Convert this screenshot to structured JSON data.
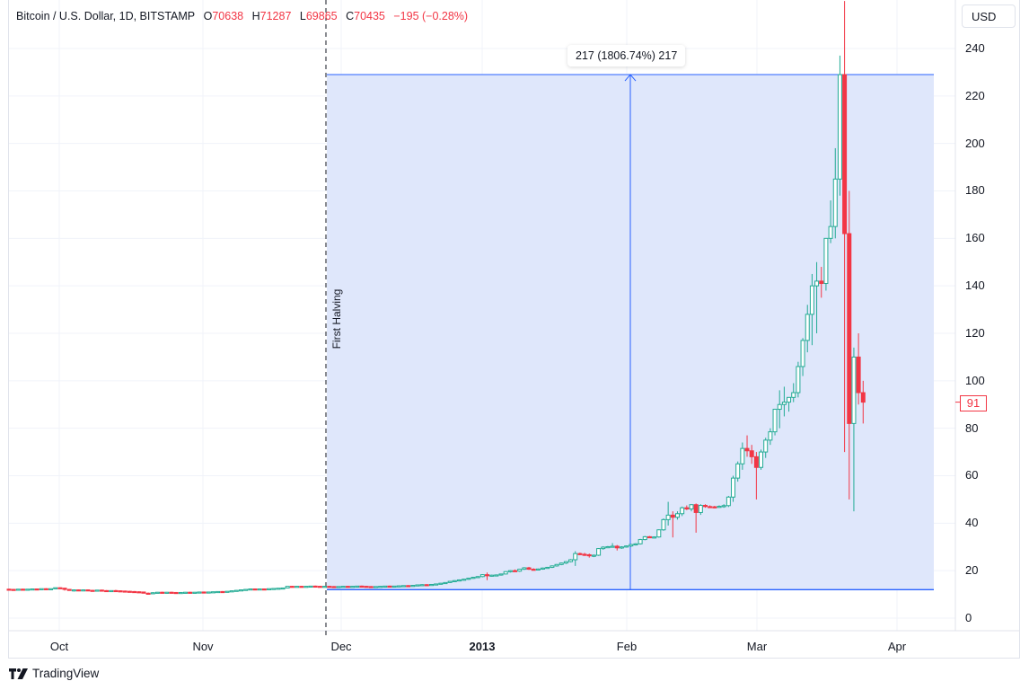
{
  "legend": {
    "symbol": "Bitcoin / U.S. Dollar, 1D, BITSTAMP",
    "open_label": "O",
    "open": "70638",
    "high_label": "H",
    "high": "71287",
    "low_label": "L",
    "low": "69865",
    "close_label": "C",
    "close": "70435",
    "change": "−195 (−0.28%)"
  },
  "currency_button": "USD",
  "last_price_tag": "91",
  "measure_label": "217 (1806.74%) 217",
  "event_marker": {
    "label": "First Halving"
  },
  "brand": {
    "name": "TradingView",
    "icon": "tradingview-logo-icon"
  },
  "colors": {
    "up": "#22ab94",
    "down": "#f23645",
    "measure_fill": "#dde6fb",
    "measure_line": "#2962ff",
    "grid": "#f0f3fa",
    "text": "#131722"
  },
  "y_axis": {
    "ticks": [
      "240",
      "220",
      "200",
      "180",
      "160",
      "140",
      "120",
      "100",
      "80",
      "60",
      "40",
      "20",
      "0"
    ]
  },
  "x_axis": {
    "ticks": [
      {
        "label": "Oct",
        "bold": false
      },
      {
        "label": "Nov",
        "bold": false
      },
      {
        "label": "Dec",
        "bold": false
      },
      {
        "label": "2013",
        "bold": true
      },
      {
        "label": "Feb",
        "bold": false
      },
      {
        "label": "Mar",
        "bold": false
      },
      {
        "label": "Apr",
        "bold": false
      }
    ]
  },
  "chart_data": {
    "type": "candlestick",
    "title": "Bitcoin / U.S. Dollar, 1D, BITSTAMP",
    "xlabel": "",
    "ylabel": "USD",
    "ylim": [
      -8,
      250
    ],
    "x_range": [
      "2012-09-20",
      "2013-04-17"
    ],
    "grid": true,
    "legend_position": "top-left",
    "x_ticks": [
      "Oct",
      "Nov",
      "Dec",
      "2013",
      "Feb",
      "Mar",
      "Apr"
    ],
    "y_ticks": [
      0,
      20,
      40,
      60,
      80,
      100,
      120,
      140,
      160,
      180,
      200,
      220,
      240
    ],
    "annotations": [
      {
        "type": "vertical-dashed-line",
        "date": "2012-11-28",
        "label": "First Halving"
      },
      {
        "type": "price-range-measure",
        "from_date": "2012-11-28",
        "to_date": "2013-04-10",
        "from_price": 12,
        "to_price": 229,
        "label": "217 (1806.74%) 217"
      },
      {
        "type": "last-price",
        "value": 91
      }
    ],
    "approx_closes": [
      {
        "date": "2012-09-20",
        "close": 12.2
      },
      {
        "date": "2012-10-01",
        "close": 12.4
      },
      {
        "date": "2012-10-15",
        "close": 11.8
      },
      {
        "date": "2012-11-01",
        "close": 10.8
      },
      {
        "date": "2012-11-15",
        "close": 11.0
      },
      {
        "date": "2012-11-28",
        "close": 12.3
      },
      {
        "date": "2012-12-15",
        "close": 13.4
      },
      {
        "date": "2013-01-01",
        "close": 13.4
      },
      {
        "date": "2013-01-15",
        "close": 14.5
      },
      {
        "date": "2013-02-01",
        "close": 20.0
      },
      {
        "date": "2013-02-15",
        "close": 27.0
      },
      {
        "date": "2013-03-01",
        "close": 34.0
      },
      {
        "date": "2013-03-10",
        "close": 46.0
      },
      {
        "date": "2013-03-20",
        "close": 64.0
      },
      {
        "date": "2013-04-01",
        "close": 104.0
      },
      {
        "date": "2013-04-06",
        "close": 142.0
      },
      {
        "date": "2013-04-09",
        "close": 230.0
      },
      {
        "date": "2013-04-10",
        "close": 162.0
      },
      {
        "date": "2013-04-11",
        "close": 83.0
      },
      {
        "date": "2013-04-12",
        "close": 109.0
      },
      {
        "date": "2013-04-13",
        "close": 93.0
      },
      {
        "date": "2013-04-14",
        "close": 91.0
      }
    ],
    "candles": [
      [
        12.2,
        12.4,
        12.0,
        12.1
      ],
      [
        12.1,
        12.3,
        11.9,
        12.0
      ],
      [
        12.0,
        12.3,
        11.9,
        12.2
      ],
      [
        12.2,
        12.4,
        12.0,
        12.1
      ],
      [
        12.1,
        12.3,
        11.9,
        12.2
      ],
      [
        12.2,
        12.5,
        12.0,
        12.3
      ],
      [
        12.3,
        12.5,
        12.1,
        12.2
      ],
      [
        12.2,
        12.4,
        12.0,
        12.4
      ],
      [
        12.4,
        12.6,
        12.2,
        12.3
      ],
      [
        12.3,
        12.5,
        12.1,
        12.4
      ],
      [
        12.4,
        12.9,
        12.2,
        12.8
      ],
      [
        12.8,
        13.0,
        12.5,
        12.6
      ],
      [
        12.6,
        12.8,
        11.6,
        12.1
      ],
      [
        12.1,
        12.3,
        11.7,
        11.8
      ],
      [
        11.8,
        12.1,
        11.2,
        11.9
      ],
      [
        11.9,
        12.1,
        11.6,
        11.7
      ],
      [
        11.7,
        12.0,
        11.5,
        11.9
      ],
      [
        11.9,
        12.0,
        11.6,
        11.7
      ],
      [
        11.7,
        11.9,
        11.4,
        11.6
      ],
      [
        11.6,
        11.9,
        11.4,
        11.8
      ],
      [
        11.8,
        12.0,
        11.5,
        11.6
      ],
      [
        11.6,
        11.8,
        11.2,
        11.4
      ],
      [
        11.4,
        11.7,
        11.2,
        11.6
      ],
      [
        11.6,
        11.9,
        11.3,
        11.5
      ],
      [
        11.5,
        11.7,
        11.2,
        11.4
      ],
      [
        11.4,
        11.6,
        11.1,
        11.3
      ],
      [
        11.3,
        11.5,
        11.1,
        11.2
      ],
      [
        11.2,
        11.4,
        10.9,
        11.1
      ],
      [
        11.1,
        11.3,
        10.8,
        11.0
      ],
      [
        11.0,
        11.1,
        10.4,
        10.5
      ],
      [
        10.5,
        10.8,
        10.0,
        10.3
      ],
      [
        10.3,
        10.9,
        10.2,
        10.7
      ],
      [
        10.7,
        11.0,
        10.5,
        10.9
      ],
      [
        10.9,
        11.1,
        10.7,
        10.8
      ],
      [
        10.8,
        11.0,
        10.6,
        10.9
      ],
      [
        10.9,
        11.1,
        10.7,
        10.8
      ],
      [
        10.8,
        11.0,
        10.6,
        10.7
      ],
      [
        10.7,
        10.9,
        10.5,
        10.8
      ],
      [
        10.8,
        11.0,
        10.6,
        10.9
      ],
      [
        10.9,
        11.1,
        10.7,
        10.8
      ],
      [
        10.8,
        11.0,
        10.6,
        10.9
      ],
      [
        10.9,
        11.1,
        10.7,
        11.0
      ],
      [
        11.0,
        11.2,
        10.8,
        10.9
      ],
      [
        10.9,
        11.1,
        10.7,
        11.0
      ],
      [
        11.0,
        11.2,
        10.8,
        11.1
      ],
      [
        11.1,
        11.3,
        10.9,
        11.2
      ],
      [
        11.2,
        11.4,
        11.0,
        11.1
      ],
      [
        11.1,
        11.3,
        10.9,
        11.3
      ],
      [
        11.3,
        11.6,
        11.1,
        11.5
      ],
      [
        11.5,
        11.8,
        11.3,
        11.7
      ],
      [
        11.7,
        12.0,
        11.5,
        11.9
      ],
      [
        11.9,
        12.2,
        11.7,
        12.1
      ],
      [
        12.1,
        12.4,
        11.9,
        12.3
      ],
      [
        12.3,
        12.5,
        12.0,
        12.2
      ],
      [
        12.2,
        12.4,
        12.0,
        12.3
      ],
      [
        12.3,
        12.5,
        12.0,
        12.2
      ],
      [
        12.2,
        12.4,
        12.0,
        12.4
      ],
      [
        12.4,
        12.6,
        12.2,
        12.5
      ],
      [
        12.5,
        12.7,
        12.3,
        12.6
      ],
      [
        12.6,
        12.8,
        12.4,
        12.7
      ],
      [
        12.7,
        13.5,
        12.6,
        13.4
      ],
      [
        13.4,
        13.6,
        13.1,
        13.3
      ],
      [
        13.3,
        13.5,
        13.1,
        13.4
      ],
      [
        13.4,
        13.6,
        13.2,
        13.3
      ],
      [
        13.3,
        13.5,
        13.1,
        13.4
      ],
      [
        13.4,
        13.6,
        13.2,
        13.5
      ],
      [
        13.5,
        13.7,
        13.3,
        13.4
      ],
      [
        13.4,
        13.6,
        13.2,
        13.3
      ],
      [
        13.3,
        13.5,
        13.1,
        13.4
      ],
      [
        13.4,
        13.6,
        13.2,
        13.3
      ],
      [
        13.3,
        13.5,
        13.1,
        13.2
      ],
      [
        13.2,
        13.4,
        13.0,
        13.3
      ],
      [
        13.3,
        13.5,
        13.1,
        13.4
      ],
      [
        13.4,
        13.6,
        13.2,
        13.3
      ],
      [
        13.3,
        13.5,
        13.1,
        13.4
      ],
      [
        13.4,
        13.6,
        13.2,
        13.5
      ],
      [
        13.5,
        13.7,
        13.3,
        13.4
      ],
      [
        13.4,
        13.6,
        13.2,
        13.3
      ],
      [
        13.3,
        13.5,
        13.1,
        13.2
      ],
      [
        13.2,
        13.4,
        13.0,
        13.3
      ],
      [
        13.3,
        13.5,
        13.1,
        13.4
      ],
      [
        13.4,
        13.6,
        13.2,
        13.5
      ],
      [
        13.5,
        13.7,
        13.3,
        13.4
      ],
      [
        13.4,
        13.6,
        13.2,
        13.5
      ],
      [
        13.5,
        13.8,
        13.3,
        13.6
      ],
      [
        13.6,
        13.8,
        13.4,
        13.7
      ],
      [
        13.7,
        13.9,
        13.5,
        13.6
      ],
      [
        13.6,
        13.9,
        13.4,
        13.8
      ],
      [
        13.8,
        14.1,
        13.6,
        14.0
      ],
      [
        14.0,
        14.3,
        13.8,
        14.1
      ],
      [
        14.1,
        14.3,
        13.9,
        14.0
      ],
      [
        14.0,
        14.3,
        13.8,
        14.2
      ],
      [
        14.2,
        14.5,
        14.0,
        14.4
      ],
      [
        14.4,
        14.8,
        14.2,
        14.7
      ],
      [
        14.7,
        15.1,
        14.5,
        15.0
      ],
      [
        15.0,
        15.6,
        14.8,
        15.5
      ],
      [
        15.5,
        16.0,
        15.2,
        15.8
      ],
      [
        15.8,
        16.3,
        15.5,
        16.1
      ],
      [
        16.1,
        16.6,
        15.8,
        16.4
      ],
      [
        16.4,
        17.0,
        16.1,
        16.8
      ],
      [
        16.8,
        17.4,
        16.5,
        17.2
      ],
      [
        17.2,
        17.7,
        16.9,
        17.5
      ],
      [
        17.5,
        18.5,
        17.2,
        18.3
      ],
      [
        18.3,
        19.2,
        16.0,
        17.9
      ],
      [
        17.9,
        18.3,
        17.5,
        18.1
      ],
      [
        18.1,
        18.4,
        17.8,
        18.2
      ],
      [
        18.2,
        18.7,
        17.9,
        18.6
      ],
      [
        18.6,
        19.8,
        18.4,
        19.6
      ],
      [
        19.6,
        20.2,
        19.2,
        20.0
      ],
      [
        20.0,
        20.5,
        19.5,
        19.8
      ],
      [
        19.8,
        20.8,
        19.5,
        20.6
      ],
      [
        20.6,
        21.5,
        20.3,
        21.2
      ],
      [
        21.2,
        21.6,
        20.3,
        20.6
      ],
      [
        20.6,
        21.0,
        20.2,
        20.5
      ],
      [
        20.5,
        20.9,
        20.1,
        20.7
      ],
      [
        20.7,
        21.3,
        20.4,
        21.1
      ],
      [
        21.1,
        21.6,
        20.8,
        21.4
      ],
      [
        21.4,
        22.2,
        21.1,
        22.0
      ],
      [
        22.0,
        22.8,
        21.7,
        22.6
      ],
      [
        22.6,
        23.4,
        22.3,
        23.2
      ],
      [
        23.2,
        24.0,
        22.8,
        23.8
      ],
      [
        23.8,
        24.9,
        23.5,
        24.6
      ],
      [
        24.6,
        28.2,
        22.0,
        27.2
      ],
      [
        27.2,
        27.6,
        26.5,
        26.9
      ],
      [
        26.9,
        27.5,
        26.2,
        26.7
      ],
      [
        26.7,
        27.2,
        25.5,
        26.4
      ],
      [
        26.4,
        26.8,
        25.7,
        26.5
      ],
      [
        26.5,
        29.5,
        26.2,
        29.3
      ],
      [
        29.3,
        30.3,
        28.8,
        29.9
      ],
      [
        29.9,
        30.4,
        29.5,
        30.1
      ],
      [
        30.1,
        31.6,
        29.8,
        30.3
      ],
      [
        30.3,
        30.8,
        28.5,
        29.6
      ],
      [
        29.6,
        30.3,
        29.2,
        30.0
      ],
      [
        30.0,
        30.6,
        29.7,
        30.4
      ],
      [
        30.4,
        31.3,
        30.0,
        31.0
      ],
      [
        31.0,
        31.6,
        30.6,
        31.3
      ],
      [
        31.3,
        33.4,
        31.0,
        33.1
      ],
      [
        33.1,
        34.6,
        32.8,
        34.3
      ],
      [
        34.3,
        34.6,
        33.8,
        34.0
      ],
      [
        34.0,
        34.4,
        33.6,
        34.2
      ],
      [
        34.2,
        37.4,
        33.9,
        37.2
      ],
      [
        37.2,
        42.0,
        36.8,
        41.5
      ],
      [
        41.5,
        49.0,
        39.0,
        43.4
      ],
      [
        43.4,
        45.0,
        34.0,
        42.5
      ],
      [
        42.5,
        45.0,
        41.5,
        44.0
      ],
      [
        44.0,
        47.0,
        43.0,
        46.5
      ],
      [
        46.5,
        47.5,
        45.5,
        46.0
      ],
      [
        46.0,
        48.0,
        45.0,
        47.8
      ],
      [
        47.8,
        48.3,
        36.0,
        44.5
      ],
      [
        44.5,
        48.0,
        43.5,
        47.5
      ],
      [
        47.5,
        48.0,
        46.5,
        47.0
      ],
      [
        47.0,
        47.5,
        46.5,
        46.9
      ],
      [
        46.9,
        47.3,
        46.3,
        46.8
      ],
      [
        46.8,
        47.5,
        46.5,
        47.1
      ],
      [
        47.1,
        48.0,
        46.5,
        47.4
      ],
      [
        47.4,
        51.5,
        46.8,
        51.0
      ],
      [
        51.0,
        60.0,
        49.0,
        59.0
      ],
      [
        59.0,
        66.0,
        57.5,
        65.0
      ],
      [
        65.0,
        74.0,
        62.5,
        71.5
      ],
      [
        71.5,
        77.0,
        68.0,
        70.5
      ],
      [
        70.5,
        73.0,
        65.0,
        68.0
      ],
      [
        68.0,
        70.0,
        50.0,
        63.5
      ],
      [
        63.5,
        71.0,
        62.5,
        70.0
      ],
      [
        70.0,
        76.0,
        67.5,
        75.0
      ],
      [
        75.0,
        80.0,
        73.0,
        78.5
      ],
      [
        78.5,
        88.0,
        77.0,
        88.0
      ],
      [
        88.0,
        96.0,
        80.0,
        90.0
      ],
      [
        90.0,
        97.5,
        85.0,
        91.0
      ],
      [
        91.0,
        93.0,
        87.0,
        93.0
      ],
      [
        93.0,
        99.0,
        91.0,
        95.0
      ],
      [
        95.0,
        108.0,
        93.0,
        106.0
      ],
      [
        106.0,
        118.0,
        102.0,
        117.0
      ],
      [
        117.0,
        132.0,
        112.0,
        128.0
      ],
      [
        128.0,
        145.0,
        115.0,
        140.0
      ],
      [
        140.0,
        150.0,
        120.0,
        142.0
      ],
      [
        142.0,
        148.0,
        135.0,
        141.0
      ],
      [
        141.0,
        160.0,
        138.0,
        160.0
      ],
      [
        160.0,
        176.0,
        158.0,
        165.0
      ],
      [
        165.0,
        198.0,
        160.0,
        185.0
      ],
      [
        185.0,
        237.0,
        178.0,
        229.0
      ],
      [
        229.0,
        260.0,
        70.0,
        162.0
      ],
      [
        162.0,
        180.0,
        50.0,
        82.0
      ],
      [
        82.0,
        114.0,
        45.0,
        110.0
      ],
      [
        110.0,
        120.0,
        90.0,
        95.0
      ],
      [
        95.0,
        100.0,
        82.0,
        91.0
      ]
    ]
  }
}
